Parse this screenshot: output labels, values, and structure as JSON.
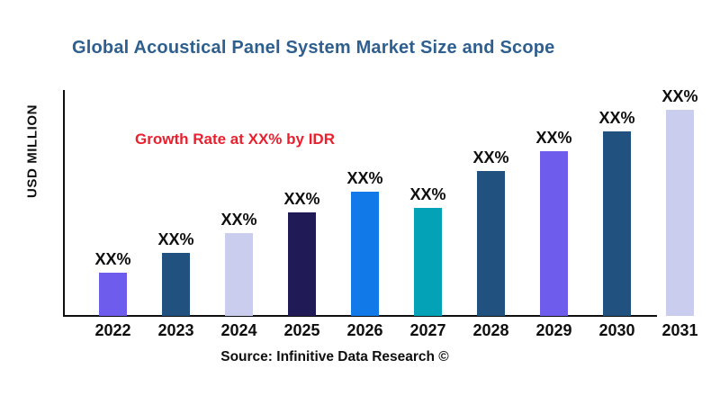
{
  "title": "Global Acoustical Panel System Market Size and Scope",
  "annotation": "Growth Rate at XX% by IDR",
  "y_axis_label": "USD MILLION",
  "source": "Source: Infinitive Data Research ©",
  "colors": {
    "title": "#2E5F8E",
    "annotation": "#E9212E",
    "axis": "#0F0F0F",
    "text": "#0F0F0F"
  },
  "chart_data": {
    "type": "bar",
    "title": "Global Acoustical Panel System Market Size and Scope",
    "xlabel": "",
    "ylabel": "USD MILLION",
    "categories": [
      "2022",
      "2023",
      "2024",
      "2025",
      "2026",
      "2027",
      "2028",
      "2029",
      "2030",
      "2031"
    ],
    "values": [
      48,
      70,
      92,
      115,
      138,
      120,
      161,
      183,
      205,
      229
    ],
    "ylim": [
      0,
      250
    ],
    "bar_label": "XX%",
    "bar_colors": [
      "#6E5CEC",
      "#21517E",
      "#CBCDEF",
      "#201A56",
      "#1279E8",
      "#04A2B6",
      "#21517E",
      "#6E5CEC",
      "#21517E",
      "#CBCDEF"
    ],
    "legend": "none",
    "grid": "off",
    "annotations": [
      "Growth Rate at XX% by IDR"
    ]
  }
}
